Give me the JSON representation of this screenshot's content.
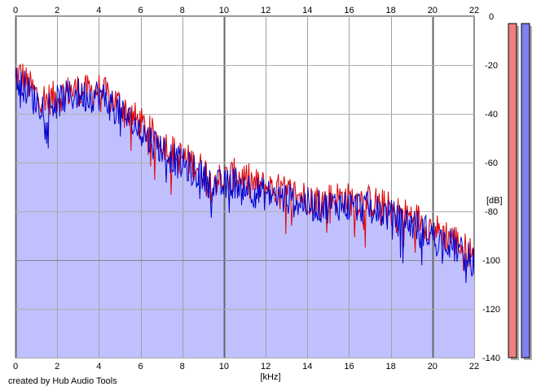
{
  "chart_data": {
    "type": "area",
    "xlabel": "[kHz]",
    "ylabel": "[dB]",
    "xlim": [
      0,
      22
    ],
    "ylim": [
      -140,
      0
    ],
    "x_ticks": [
      0,
      2,
      4,
      6,
      8,
      10,
      12,
      14,
      16,
      18,
      20,
      22
    ],
    "y_ticks": [
      0,
      -20,
      -40,
      -60,
      -80,
      -100,
      -120,
      -140
    ],
    "grid": true,
    "series": [
      {
        "color": "#e00000",
        "x": [
          0,
          0.3,
          0.6,
          1,
          1.5,
          2,
          2.5,
          3,
          3.5,
          4,
          4.5,
          5,
          5.5,
          6,
          6.5,
          7,
          7.5,
          8,
          8.5,
          9,
          9.5,
          10,
          10.5,
          11,
          11.5,
          12,
          12.5,
          13,
          13.5,
          14,
          14.5,
          15,
          15.5,
          16,
          16.5,
          17,
          17.5,
          18,
          18.5,
          19,
          19.5,
          20,
          20.5,
          21,
          21.5,
          22
        ],
        "y": [
          -24,
          -24,
          -28,
          -32,
          -34,
          -33,
          -31,
          -30,
          -31,
          -30,
          -33,
          -36,
          -40,
          -44,
          -48,
          -51,
          -55,
          -58,
          -60,
          -63,
          -66,
          -67,
          -65,
          -66,
          -69,
          -70,
          -71,
          -72,
          -73,
          -74,
          -75,
          -75,
          -74,
          -75,
          -75,
          -76,
          -77,
          -79,
          -81,
          -82,
          -84,
          -87,
          -89,
          -91,
          -95,
          -98
        ]
      },
      {
        "color": "#0000cc",
        "x": [
          0,
          0.3,
          0.6,
          1,
          1.5,
          2,
          2.5,
          3,
          3.5,
          4,
          4.5,
          5,
          5.5,
          6,
          6.5,
          7,
          7.5,
          8,
          8.5,
          9,
          9.5,
          10,
          10.5,
          11,
          11.5,
          12,
          12.5,
          13,
          13.5,
          14,
          14.5,
          15,
          15.5,
          16,
          16.5,
          17,
          17.5,
          18,
          18.5,
          19,
          19.5,
          20,
          20.5,
          21,
          21.5,
          22
        ],
        "y": [
          -27,
          -27,
          -31,
          -35,
          -37,
          -35,
          -33,
          -32,
          -33,
          -32,
          -36,
          -39,
          -43,
          -47,
          -51,
          -54,
          -58,
          -61,
          -63,
          -66,
          -69,
          -70,
          -68,
          -69,
          -72,
          -73,
          -74,
          -75,
          -76,
          -77,
          -78,
          -78,
          -77,
          -78,
          -78,
          -79,
          -80,
          -82,
          -84,
          -85,
          -87,
          -90,
          -92,
          -94,
          -98,
          -101
        ]
      }
    ],
    "level_meters": [
      {
        "color": "#f08080",
        "level_db": -3
      },
      {
        "color": "#8080f0",
        "level_db": -3
      }
    ]
  },
  "credit": "created by Hub Audio Tools"
}
